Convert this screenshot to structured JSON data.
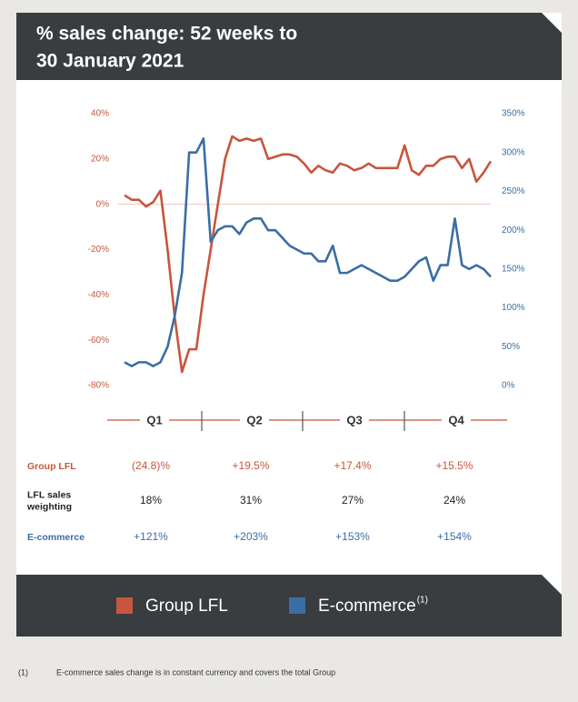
{
  "chart_data": {
    "type": "line",
    "title": [
      "% sales change: 52 weeks to",
      "30 January 2021"
    ],
    "ylim": [
      -80,
      40
    ],
    "yticks": [
      {
        "value": 40,
        "label": "40%"
      },
      {
        "value": 20,
        "label": "20%"
      },
      {
        "value": 0,
        "label": "0%"
      },
      {
        "value": -20,
        "label": "-20%"
      },
      {
        "value": -40,
        "label": "-40%"
      },
      {
        "value": -60,
        "label": "-60%"
      },
      {
        "value": -80,
        "label": "-80%"
      }
    ],
    "y2lim": [
      0,
      350
    ],
    "y2ticks": [
      {
        "value": 350,
        "label": "350%"
      },
      {
        "value": 300,
        "label": "300%"
      },
      {
        "value": 250,
        "label": "250%"
      },
      {
        "value": 200,
        "label": "200%"
      },
      {
        "value": 150,
        "label": "150%"
      },
      {
        "value": 100,
        "label": "100%"
      },
      {
        "value": 50,
        "label": "50%"
      },
      {
        "value": 0,
        "label": "0%"
      }
    ],
    "quarters": [
      "Q1",
      "Q2",
      "Q3",
      "Q4"
    ],
    "series": [
      {
        "name": "Group LFL",
        "color": "#c8553d",
        "values": [
          4,
          2,
          2,
          -1,
          1,
          6,
          -20,
          -50,
          -74,
          -64,
          -64,
          -40,
          -20,
          0,
          20,
          30,
          28,
          29,
          28,
          29,
          20,
          21,
          22,
          22,
          21,
          18,
          14,
          17,
          15,
          14,
          18,
          17,
          15,
          16,
          18,
          16,
          16,
          16,
          16,
          26,
          15,
          13,
          17,
          17,
          20,
          21,
          21,
          16,
          20,
          10,
          14,
          19
        ]
      },
      {
        "name": "E-commerce",
        "footnote_ref": "(1)",
        "color": "#3a6ea5",
        "axis": "y2",
        "values": [
          30,
          25,
          30,
          30,
          25,
          30,
          50,
          90,
          145,
          300,
          300,
          318,
          185,
          200,
          205,
          205,
          195,
          210,
          215,
          215,
          200,
          200,
          190,
          180,
          175,
          170,
          170,
          160,
          160,
          180,
          145,
          145,
          150,
          155,
          150,
          145,
          140,
          135,
          135,
          140,
          150,
          160,
          165,
          135,
          155,
          155,
          215,
          155,
          150,
          155,
          150,
          140
        ]
      }
    ]
  },
  "table": {
    "rows": [
      {
        "label": [
          "Group LFL"
        ],
        "cells": [
          "(24.8)%",
          "+19.5%",
          "+17.4%",
          "+15.5%"
        ]
      },
      {
        "label": [
          "LFL sales",
          "weighting"
        ],
        "cells": [
          "18%",
          "31%",
          "27%",
          "24%"
        ]
      },
      {
        "label": [
          "E-commerce"
        ],
        "cells": [
          "+121%",
          "+203%",
          "+153%",
          "+154%"
        ]
      }
    ]
  },
  "footnote": {
    "marker": "(1)",
    "text": "E-commerce sales change is in constant currency and covers the total Group"
  }
}
